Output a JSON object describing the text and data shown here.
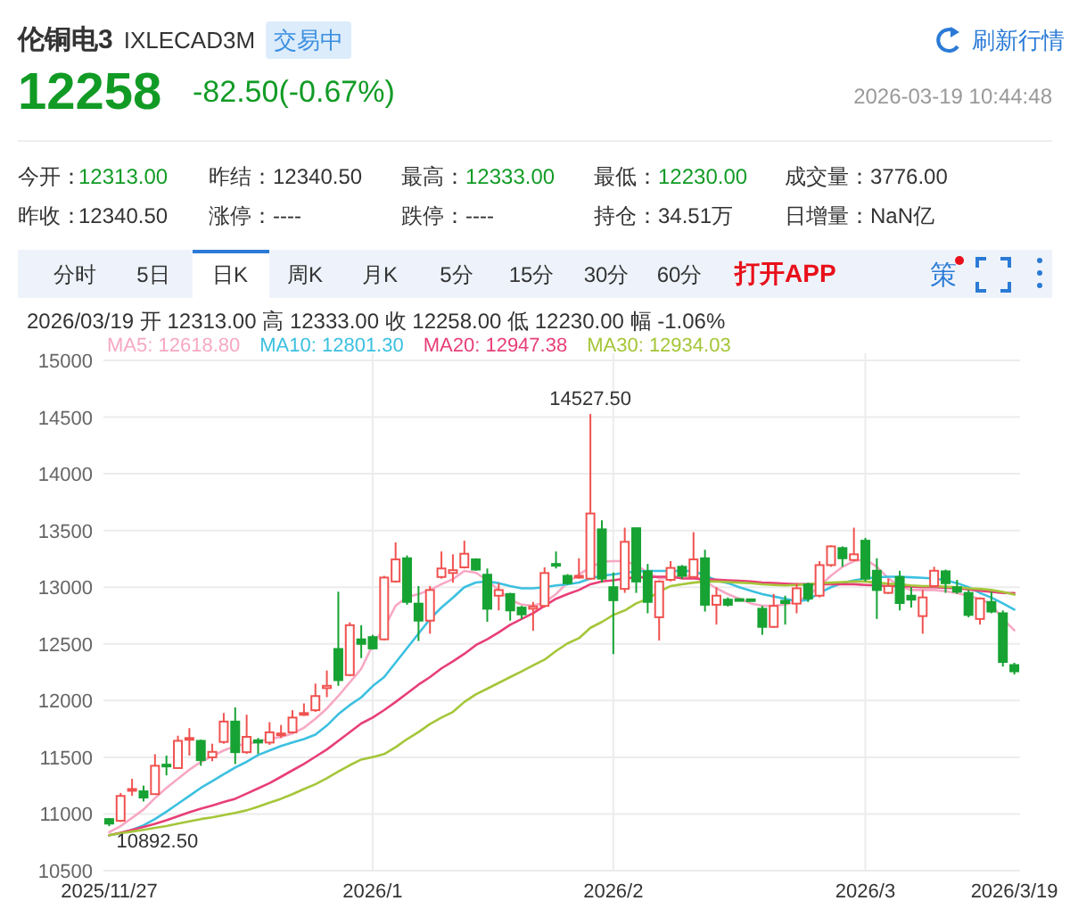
{
  "chart_data": {
    "type": "candlestick",
    "title": "伦铜电3",
    "subtitle": "IXLECAD3M",
    "annotations": [
      "交易中",
      "刷新行情",
      "12258",
      "-82.50(-0.67%)",
      "2026-03-19 10:44:48",
      "今开：",
      "12313.00",
      "昨结：",
      "12340.50",
      "最高：",
      "12333.00",
      "最低：",
      "12230.00",
      "成交量：",
      "3776.00",
      "昨收：",
      "12340.50",
      "涨停：",
      "----",
      "跌停：",
      "----",
      "持仓：",
      "34.51万",
      "日增量：",
      "NaN亿",
      "分时",
      "5日",
      "日K",
      "周K",
      "月K",
      "5分",
      "15分",
      "30分",
      "60分",
      "打开APP",
      "策",
      "2026/03/19  开 12313.00  高 12333.00  收 12258.00  低 12230.00  幅 -1.06%",
      {
        "text": "14527.50",
        "y": 14527.5
      },
      {
        "text": "10892.50",
        "y": 10892.5
      }
    ],
    "categories": [
      "2025/11/27",
      null,
      null,
      null,
      null,
      null,
      null,
      null,
      null,
      null,
      null,
      null,
      null,
      null,
      null,
      null,
      null,
      null,
      null,
      null,
      null,
      null,
      null,
      "2026/1",
      null,
      null,
      null,
      null,
      null,
      null,
      null,
      null,
      null,
      null,
      null,
      null,
      null,
      null,
      null,
      null,
      null,
      null,
      null,
      null,
      "2026/2",
      null,
      null,
      null,
      null,
      null,
      null,
      null,
      null,
      null,
      null,
      null,
      null,
      null,
      null,
      null,
      null,
      null,
      null,
      null,
      null,
      null,
      "2026/3",
      null,
      null,
      null,
      null,
      null,
      null,
      null,
      null,
      null,
      null,
      null,
      null,
      "2026/3/19"
    ],
    "ohlc": [
      [
        10955,
        10965,
        10892.5,
        10915
      ],
      [
        10940,
        11185,
        10930,
        11159
      ],
      [
        11210,
        11310,
        11160,
        11220
      ],
      [
        11200,
        11250,
        11110,
        11145
      ],
      [
        11175,
        11527,
        11170,
        11425
      ],
      [
        11435,
        11515,
        11340,
        11425
      ],
      [
        11405,
        11690,
        11400,
        11645
      ],
      [
        11655,
        11757,
        11515,
        11670
      ],
      [
        11645,
        11655,
        11425,
        11475
      ],
      [
        11500,
        11620,
        11465,
        11548
      ],
      [
        11635,
        11890,
        11620,
        11815
      ],
      [
        11815,
        11940,
        11440,
        11545
      ],
      [
        11545,
        11875,
        11530,
        11680
      ],
      [
        11650,
        11670,
        11530,
        11630
      ],
      [
        11630,
        11810,
        11610,
        11720
      ],
      [
        11700,
        11785,
        11670,
        11710
      ],
      [
        11720,
        11915,
        11710,
        11850
      ],
      [
        11875,
        11975,
        11865,
        11890
      ],
      [
        11915,
        12150,
        11900,
        12040
      ],
      [
        12110,
        12265,
        12030,
        12130
      ],
      [
        12455,
        12960,
        12130,
        12180
      ],
      [
        12225,
        12690,
        12215,
        12665
      ],
      [
        12540,
        12665,
        12375,
        12500
      ],
      [
        12560,
        12580,
        12450,
        12460
      ],
      [
        12540,
        13100,
        12530,
        13085
      ],
      [
        13050,
        13395,
        13040,
        13245
      ],
      [
        13255,
        13280,
        12845,
        12870
      ],
      [
        12855,
        13010,
        12525,
        12705
      ],
      [
        12705,
        13010,
        12590,
        12975
      ],
      [
        13090,
        13315,
        13075,
        13165
      ],
      [
        13125,
        13290,
        13040,
        13150
      ],
      [
        13175,
        13410,
        13165,
        13295
      ],
      [
        13245,
        13255,
        13145,
        13155
      ],
      [
        13110,
        13165,
        12695,
        12810
      ],
      [
        12925,
        13035,
        12795,
        12975
      ],
      [
        12940,
        12950,
        12705,
        12795
      ],
      [
        12820,
        12835,
        12720,
        12760
      ],
      [
        12810,
        12870,
        12615,
        12830
      ],
      [
        12835,
        13175,
        12820,
        13125
      ],
      [
        13205,
        13315,
        13165,
        13190
      ],
      [
        13100,
        13115,
        13020,
        13035
      ],
      [
        13090,
        13255,
        13075,
        13100
      ],
      [
        13075,
        14527.5,
        13065,
        13650
      ],
      [
        13510,
        13590,
        13040,
        13075
      ],
      [
        13000,
        13130,
        12410,
        12885
      ],
      [
        12985,
        13525,
        12950,
        13400
      ],
      [
        13520,
        13525,
        12950,
        13050
      ],
      [
        13140,
        13205,
        12770,
        12870
      ],
      [
        12735,
        13060,
        12530,
        13050
      ],
      [
        13065,
        13230,
        13050,
        13170
      ],
      [
        13180,
        13195,
        13075,
        13100
      ],
      [
        13090,
        13485,
        13075,
        13245
      ],
      [
        13255,
        13330,
        12785,
        12845
      ],
      [
        12845,
        13000,
        12670,
        12925
      ],
      [
        12890,
        12910,
        12830,
        12845
      ],
      [
        12895,
        12900,
        12885,
        12890
      ],
      [
        12893,
        12900,
        12885,
        12890
      ],
      [
        12810,
        12835,
        12580,
        12650
      ],
      [
        12650,
        12940,
        12640,
        12835
      ],
      [
        12880,
        12925,
        12670,
        12860
      ],
      [
        12855,
        13035,
        12770,
        12990
      ],
      [
        13025,
        13040,
        12870,
        12900
      ],
      [
        12925,
        13230,
        12910,
        13195
      ],
      [
        13195,
        13370,
        13180,
        13360
      ],
      [
        13345,
        13360,
        13180,
        13255
      ],
      [
        13240,
        13525,
        13230,
        13290
      ],
      [
        13410,
        13435,
        13050,
        13075
      ],
      [
        13145,
        13255,
        12720,
        12975
      ],
      [
        12950,
        13075,
        12940,
        13010
      ],
      [
        13090,
        13145,
        12795,
        12860
      ],
      [
        12925,
        13000,
        12820,
        12890
      ],
      [
        12745,
        12975,
        12590,
        12910
      ],
      [
        13010,
        13180,
        13000,
        13145
      ],
      [
        13140,
        13155,
        12950,
        13035
      ],
      [
        13000,
        13065,
        12940,
        12960
      ],
      [
        12950,
        12975,
        12735,
        12755
      ],
      [
        12720,
        12910,
        12670,
        12900
      ],
      [
        12870,
        12960,
        12770,
        12785
      ],
      [
        12770,
        12795,
        12300,
        12340.5
      ],
      [
        12313,
        12333,
        12230,
        12258
      ]
    ],
    "series": [
      {
        "name": "MA5: 12618.80",
        "type": "line",
        "color": "#f7a8c4",
        "values": [
          10840,
          10893,
          10965,
          11040,
          11140,
          11230,
          11310,
          11390,
          11460,
          11510,
          11560,
          11600,
          11620,
          11640,
          11660,
          11680,
          11710,
          11760,
          11840,
          11930,
          12040,
          12160,
          12280,
          12489,
          12642,
          12836,
          12913,
          12939,
          12975,
          13026,
          13072,
          13143,
          13128,
          13061,
          12975,
          12888,
          12847,
          12836,
          12867,
          12939,
          13041,
          13112,
          13174,
          13225,
          13230,
          13230,
          13194,
          13128,
          13077,
          13082,
          13102,
          13087,
          13051,
          12990,
          12939,
          12898,
          12857,
          12836,
          12836,
          12847,
          12872,
          12923,
          13010,
          13102,
          13179,
          13230,
          13245,
          13179,
          13077,
          13010,
          12975,
          12975,
          12975,
          12964,
          12949,
          12923,
          12898,
          12847,
          12719,
          12618.8
        ]
      },
      {
        "name": "MA10: 12801.30",
        "type": "line",
        "color": "#3cc0e0",
        "values": [
          10812,
          10830,
          10860,
          10900,
          10955,
          11020,
          11090,
          11160,
          11230,
          11290,
          11350,
          11410,
          11460,
          11520,
          11560,
          11600,
          11630,
          11660,
          11700,
          11780,
          11880,
          11960,
          12028,
          12128,
          12207,
          12335,
          12463,
          12591,
          12719,
          12821,
          12908,
          13000,
          13041,
          13051,
          13036,
          13010,
          12990,
          12990,
          13000,
          13015,
          13026,
          13041,
          13077,
          13102,
          13112,
          13128,
          13138,
          13143,
          13143,
          13143,
          13143,
          13143,
          13102,
          13061,
          13036,
          13000,
          12969,
          12939,
          12918,
          12898,
          12877,
          12888,
          12949,
          13000,
          13036,
          13061,
          13077,
          13087,
          13092,
          13092,
          13087,
          13082,
          13077,
          13061,
          13036,
          13000,
          12949,
          12908,
          12857,
          12801.3
        ]
      },
      {
        "name": "MA20: 12947.38",
        "type": "line",
        "color": "#e83f76",
        "values": [
          10812,
          10835,
          10860,
          10885,
          10913,
          10945,
          10980,
          11015,
          11047,
          11075,
          11105,
          11134,
          11180,
          11226,
          11272,
          11328,
          11385,
          11441,
          11505,
          11569,
          11645,
          11722,
          11798,
          11850,
          11916,
          11988,
          12064,
          12141,
          12207,
          12284,
          12346,
          12412,
          12489,
          12540,
          12601,
          12668,
          12719,
          12770,
          12836,
          12898,
          12939,
          12975,
          13026,
          13051,
          13061,
          13077,
          13087,
          13087,
          13092,
          13092,
          13077,
          13077,
          13072,
          13066,
          13061,
          13056,
          13051,
          13041,
          13036,
          13031,
          13026,
          13026,
          13026,
          13026,
          13026,
          13026,
          13020,
          13015,
          13010,
          13010,
          13005,
          13000,
          13000,
          12995,
          12990,
          12980,
          12969,
          12959,
          12949,
          12947.38
        ]
      },
      {
        "name": "MA30: 12934.03",
        "type": "line",
        "color": "#a5c639",
        "values": [
          10812,
          10830,
          10845,
          10860,
          10877,
          10893,
          10915,
          10935,
          10955,
          10970,
          10990,
          11010,
          11032,
          11065,
          11100,
          11134,
          11175,
          11220,
          11262,
          11315,
          11374,
          11430,
          11480,
          11502,
          11528,
          11589,
          11660,
          11722,
          11793,
          11850,
          11900,
          11988,
          12054,
          12105,
          12156,
          12207,
          12258,
          12310,
          12361,
          12437,
          12504,
          12550,
          12642,
          12693,
          12755,
          12795,
          12857,
          12898,
          12959,
          13010,
          13025,
          13040,
          13050,
          13050,
          13045,
          13040,
          13035,
          13025,
          13020,
          13015,
          13020,
          13025,
          13035,
          13040,
          13045,
          13050,
          13050,
          13040,
          13030,
          13025,
          13015,
          13010,
          13010,
          13005,
          13000,
          12990,
          12985,
          12975,
          12959,
          12934.03
        ]
      }
    ],
    "ylim": [
      10500,
      15000
    ],
    "yticks": [
      10500,
      11000,
      11500,
      12000,
      12500,
      13000,
      13500,
      14000,
      14500,
      15000
    ],
    "grid": true,
    "legend": "top left"
  }
}
